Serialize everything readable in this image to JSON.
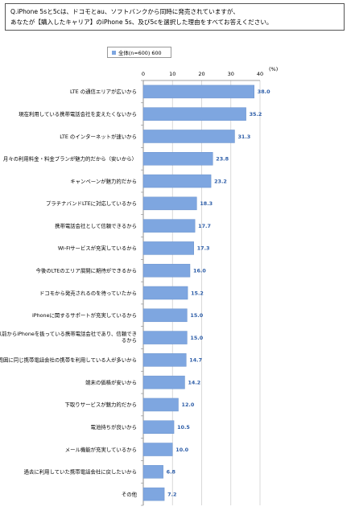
{
  "question": {
    "line1": "Q.iPhone 5sと5cは、ドコモとau、ソフトバンクから同時に発売されていますが、",
    "line2": "あなたが【購入したキャリア】のiPhone 5s、及び5cを選択した理由をすべてお答えください。"
  },
  "legend": {
    "label": "全体(n=600) 600",
    "color": "#7ea6e0"
  },
  "chart_data": {
    "type": "bar",
    "orientation": "horizontal",
    "title": "",
    "xlabel": "",
    "ylabel": "",
    "unit": "(%)",
    "xlim": [
      0,
      40
    ],
    "xticks": [
      0,
      10,
      20,
      30,
      40
    ],
    "grid": true,
    "legend_position": "top-left",
    "bar_color": "#7ea6e0",
    "label_color": "#2e5ea8",
    "categories": [
      "LTE の通信エリアが広いから",
      "現在利用している携帯電話会社を変えたくないから",
      "LTE のインターネットが速いから",
      "月々の利用料金・料金プランが魅力的だから（安いから）",
      "キャンペーンが魅力的だから",
      "プラチナバンドLTEに対応しているから",
      "携帯電話会社として信頼できるから",
      "Wi-Fiサービスが充実しているから",
      "今後のLTEのエリア展開に期待ができるから",
      "ドコモから発売されるのを待っていたから",
      "iPhoneに関するサポートが充実しているから",
      "以前からiPhoneを扱っている携帯電話会社であり、信頼できるから",
      "周囲に同じ携帯電話会社の携帯を利用している人が多いから",
      "端末の価格が安いから",
      "下取りサービスが魅力的だから",
      "電池持ちが良いから",
      "メール機能が充実しているから",
      "過去に利用していた携帯電話会社に戻したいから",
      "その他"
    ],
    "series": [
      {
        "name": "全体(n=600) 600",
        "values": [
          38.0,
          35.2,
          31.3,
          23.8,
          23.2,
          18.3,
          17.7,
          17.3,
          16.0,
          15.2,
          15.0,
          15.0,
          14.7,
          14.2,
          12.0,
          10.5,
          10.0,
          6.8,
          7.2
        ],
        "labels": [
          "38.0",
          "35.2",
          "31.3",
          "23.8",
          "23.2",
          "18.3",
          "17.7",
          "17.3",
          "16.0",
          "15.2",
          "15.0",
          "15.0",
          "14.7",
          "14.2",
          "12.0",
          "10.5",
          "10.0",
          "6.8",
          "7.2"
        ]
      }
    ]
  }
}
